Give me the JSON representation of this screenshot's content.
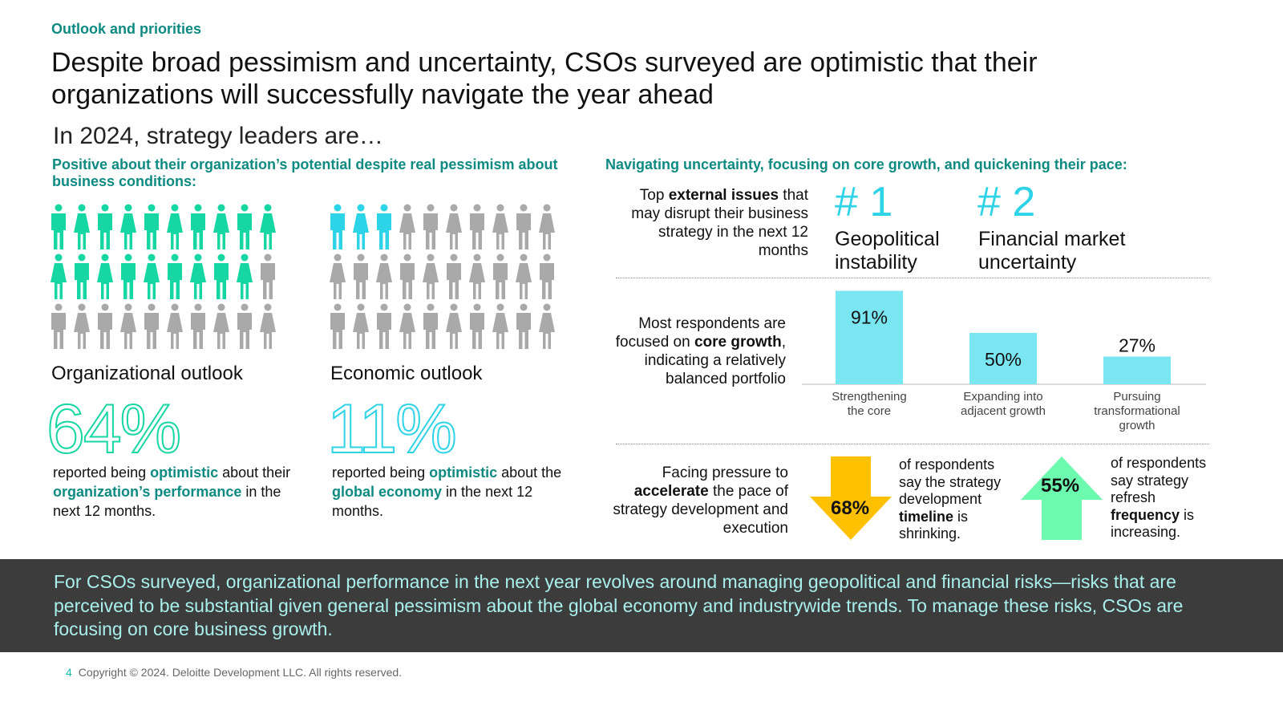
{
  "eyebrow": "Outlook and priorities",
  "headline": "Despite broad pessimism and uncertainty, CSOs surveyed are optimistic that their organizations will successfully navigate the year ahead",
  "subhead": "In 2024, strategy leaders are…",
  "left": {
    "lead": "Positive about their organization’s potential despite real pessimism about business conditions:",
    "org": {
      "label": "Organizational outlook",
      "pct": "64%",
      "text_pre": "reported being ",
      "emph1": "optimistic",
      "text_mid": " about their ",
      "emph2": "organization’s performance",
      "text_post": " in the next 12 months.",
      "figures_total": 30,
      "figures_highlighted": 19,
      "highlight_color": "#16d6a4"
    },
    "econ": {
      "label": "Economic outlook",
      "pct": "11%",
      "text_pre": "reported being ",
      "emph1": "optimistic",
      "text_mid": " about the ",
      "emph2": "global economy",
      "text_post": " in the next 12 months.",
      "figures_total": 30,
      "figures_highlighted": 3,
      "highlight_color": "#2dd3e6"
    },
    "neutral_color": "#a9a9a9"
  },
  "right": {
    "lead": "Navigating uncertainty, focusing on core growth, and quickening their pace:",
    "issues": {
      "label_pre": "Top ",
      "label_emph": "external issues",
      "label_post": " that may disrupt their business strategy in the next 12 months",
      "rank1_num": "# 1",
      "rank1_text": "Geopolitical instability",
      "rank2_num": "# 2",
      "rank2_text": "Financial market uncertainty"
    },
    "growth": {
      "label_pre": "Most respondents are focused on ",
      "label_emph": "core growth",
      "label_post": ", indicating a relatively balanced portfolio"
    },
    "pace": {
      "label_pre": "Facing pressure to ",
      "label_emph": "accelerate",
      "label_post": " the pace of strategy development and execution",
      "down_pct": "68%",
      "down_pre": "of respondents say the strategy development ",
      "down_emph": "timeline",
      "down_post": " is shrinking.",
      "up_pct": "55%",
      "up_pre": "of respondents say strategy refresh ",
      "up_emph": "frequency",
      "up_post": " is increasing.",
      "down_color": "#ffc000",
      "up_color": "#6cfbae"
    }
  },
  "chart_data": {
    "type": "bar",
    "categories": [
      "Strengthening the core",
      "Expanding into adjacent growth",
      "Pursuing transformational growth"
    ],
    "values": [
      91,
      50,
      27
    ],
    "labels": [
      "91%",
      "50%",
      "27%"
    ],
    "ylim": [
      0,
      100
    ],
    "bar_color": "#7ae6f2",
    "grid": false
  },
  "banner": "For CSOs surveyed, organizational performance in the next year revolves around managing geopolitical and financial risks—risks that are perceived to be substantial given general pessimism about the global economy and industrywide trends. To manage these risks, CSOs are focusing on core business growth.",
  "footer": {
    "page": "4",
    "copyright": "Copyright © 2024. Deloitte Development LLC. All rights reserved."
  }
}
